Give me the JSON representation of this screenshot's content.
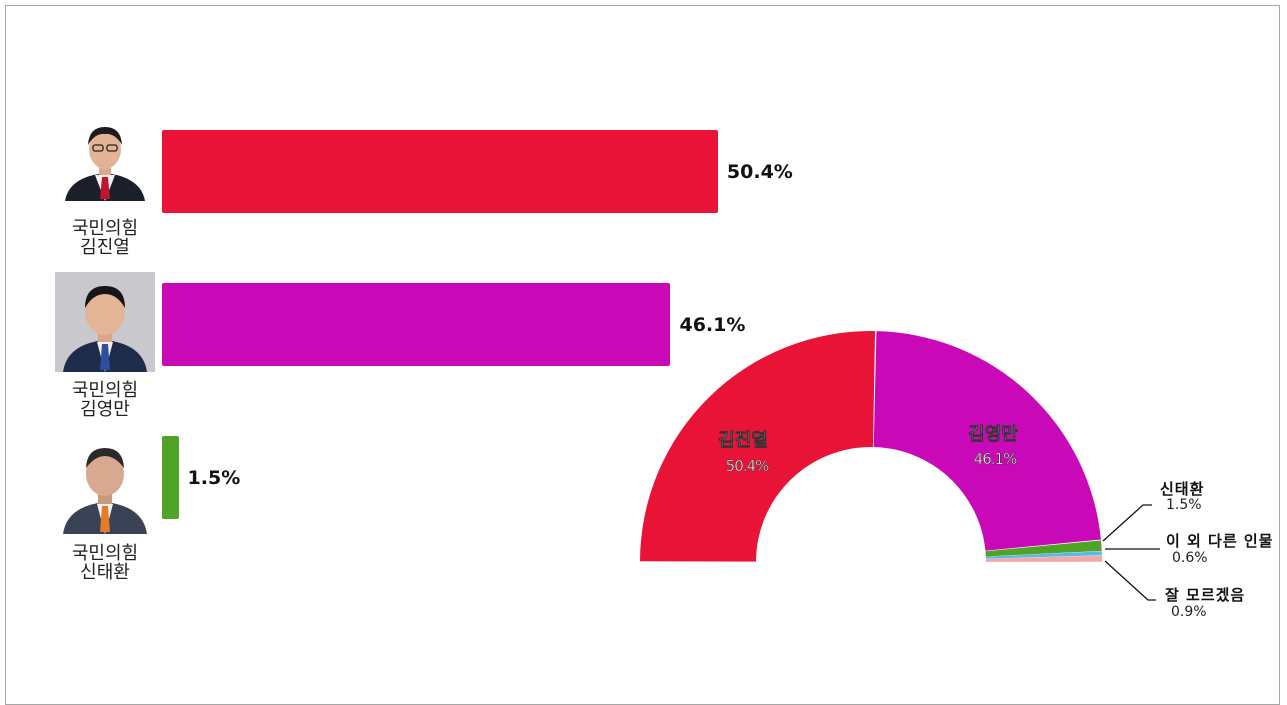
{
  "chart_data": [
    {
      "type": "bar",
      "orientation": "horizontal",
      "categories": [
        "김진열",
        "김영만",
        "신태환"
      ],
      "parties": [
        "국민의힘",
        "국민의힘",
        "국민의힘"
      ],
      "values": [
        50.4,
        46.1,
        1.5
      ],
      "value_labels": [
        "50.4%",
        "46.1%",
        "1.5%"
      ],
      "colors": [
        "#e81336",
        "#c908b8",
        "#4fa326"
      ]
    },
    {
      "type": "pie",
      "style": "semi-donut",
      "slices": [
        {
          "label": "김진열",
          "value": 50.4,
          "pct_label": "50.4%",
          "color": "#e81336"
        },
        {
          "label": "김영만",
          "value": 46.1,
          "pct_label": "46.1%",
          "color": "#c908b8"
        },
        {
          "label": "신태환",
          "value": 1.5,
          "pct_label": "1.5%",
          "color": "#4fa326"
        },
        {
          "label": "이 외 다른 인물",
          "value": 0.6,
          "pct_label": "0.6%",
          "color": "#5bb8e6"
        },
        {
          "label": "잘 모르겠음",
          "value": 0.9,
          "pct_label": "0.9%",
          "color": "#f0a8a8"
        }
      ]
    }
  ],
  "candidates": [
    {
      "party": "국민의힘",
      "name": "김진열",
      "pct": "50.4%",
      "color": "#e81336"
    },
    {
      "party": "국민의힘",
      "name": "김영만",
      "pct": "46.1%",
      "color": "#c908b8"
    },
    {
      "party": "국민의힘",
      "name": "신태환",
      "pct": "1.5%",
      "color": "#4fa326"
    }
  ],
  "semi_labels": {
    "s0_name": "김진열",
    "s0_pct": "50.4%",
    "s1_name": "김영만",
    "s1_pct": "46.1%"
  },
  "legend": [
    {
      "name": "신태환",
      "pct": "1.5%"
    },
    {
      "name": "이 외 다른 인물",
      "pct": "0.6%"
    },
    {
      "name": "잘 모르겠음",
      "pct": "0.9%"
    }
  ]
}
